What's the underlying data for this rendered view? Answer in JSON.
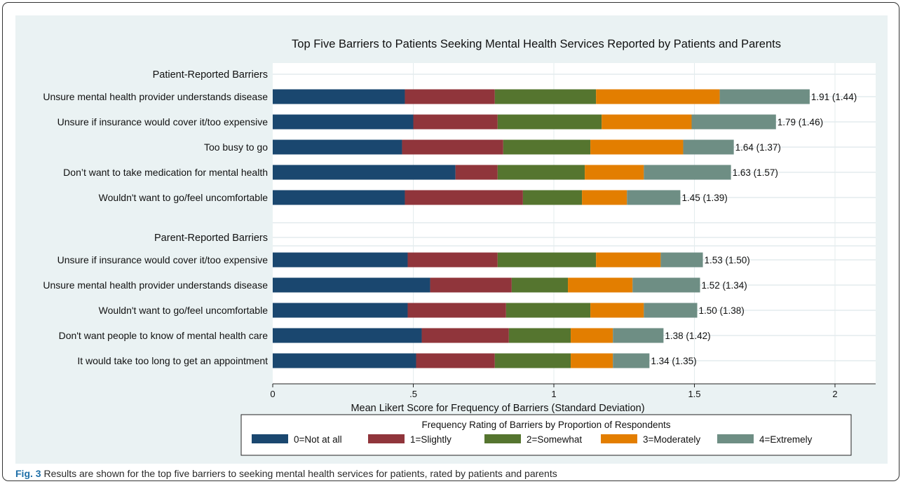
{
  "chart_data": {
    "type": "bar",
    "orientation": "horizontal",
    "stacked": true,
    "title": "Top Five Barriers to Patients Seeking Mental Health Services Reported by Patients and Parents",
    "xlabel": "Mean Likert Score for Frequency of Barriers (Standard Deviation)",
    "xlim": [
      0,
      2.15
    ],
    "xticks": [
      {
        "value": 0,
        "label": "0"
      },
      {
        "value": 0.5,
        "label": ".5"
      },
      {
        "value": 1,
        "label": "1"
      },
      {
        "value": 1.5,
        "label": "1.5"
      },
      {
        "value": 2,
        "label": "2"
      }
    ],
    "grid": true,
    "legend": {
      "title": "Frequency Rating of Barriers by Proportion of Respondents",
      "placement": "bottom",
      "entries": [
        "0=Not at all",
        "1=Slightly",
        "2=Somewhat",
        "3=Moderately",
        "4=Extremely"
      ]
    },
    "colors": [
      "#1a476f",
      "#90353b",
      "#55752f",
      "#e37e00",
      "#6e8e84"
    ],
    "groups": [
      {
        "label": "Patient-Reported Barriers",
        "rows": [
          {
            "label": "Unsure mental health provider understands disease",
            "segments": [
              0.47,
              0.32,
              0.36,
              0.44,
              0.32
            ],
            "value_label": "1.91 (1.44)"
          },
          {
            "label": "Unsure if insurance would cover it/too expensive",
            "segments": [
              0.5,
              0.3,
              0.37,
              0.32,
              0.3
            ],
            "value_label": "1.79 (1.46)"
          },
          {
            "label": "Too busy to go",
            "segments": [
              0.46,
              0.36,
              0.31,
              0.33,
              0.18
            ],
            "value_label": "1.64 (1.37)"
          },
          {
            "label": "Don’t want to take medication for mental health",
            "segments": [
              0.65,
              0.15,
              0.31,
              0.21,
              0.31
            ],
            "value_label": "1.63 (1.57)"
          },
          {
            "label": "Wouldn't want to go/feel uncomfortable",
            "segments": [
              0.47,
              0.42,
              0.21,
              0.16,
              0.19
            ],
            "value_label": "1.45 (1.39)"
          }
        ]
      },
      {
        "label": "Parent-Reported Barriers",
        "rows": [
          {
            "label": "Unsure if insurance would cover it/too expensive",
            "segments": [
              0.48,
              0.32,
              0.35,
              0.23,
              0.15
            ],
            "value_label": "1.53 (1.50)"
          },
          {
            "label": "Unsure mental health provider understands disease",
            "segments": [
              0.56,
              0.29,
              0.2,
              0.23,
              0.24
            ],
            "value_label": "1.52 (1.34)"
          },
          {
            "label": "Wouldn't want to go/feel uncomfortable",
            "segments": [
              0.48,
              0.35,
              0.3,
              0.19,
              0.19
            ],
            "value_label": "1.50 (1.38)"
          },
          {
            "label": "Don't want people to know of mental health care",
            "segments": [
              0.53,
              0.31,
              0.22,
              0.15,
              0.18
            ],
            "value_label": "1.38 (1.42)"
          },
          {
            "label": "It would take too long to get an appointment",
            "segments": [
              0.51,
              0.28,
              0.27,
              0.15,
              0.13
            ],
            "value_label": "1.34 (1.35)"
          }
        ]
      }
    ]
  },
  "caption": {
    "fig_label": "Fig. 3",
    "text": " Results are shown for the top five barriers to seeking mental health services for patients, rated by patients and parents"
  }
}
